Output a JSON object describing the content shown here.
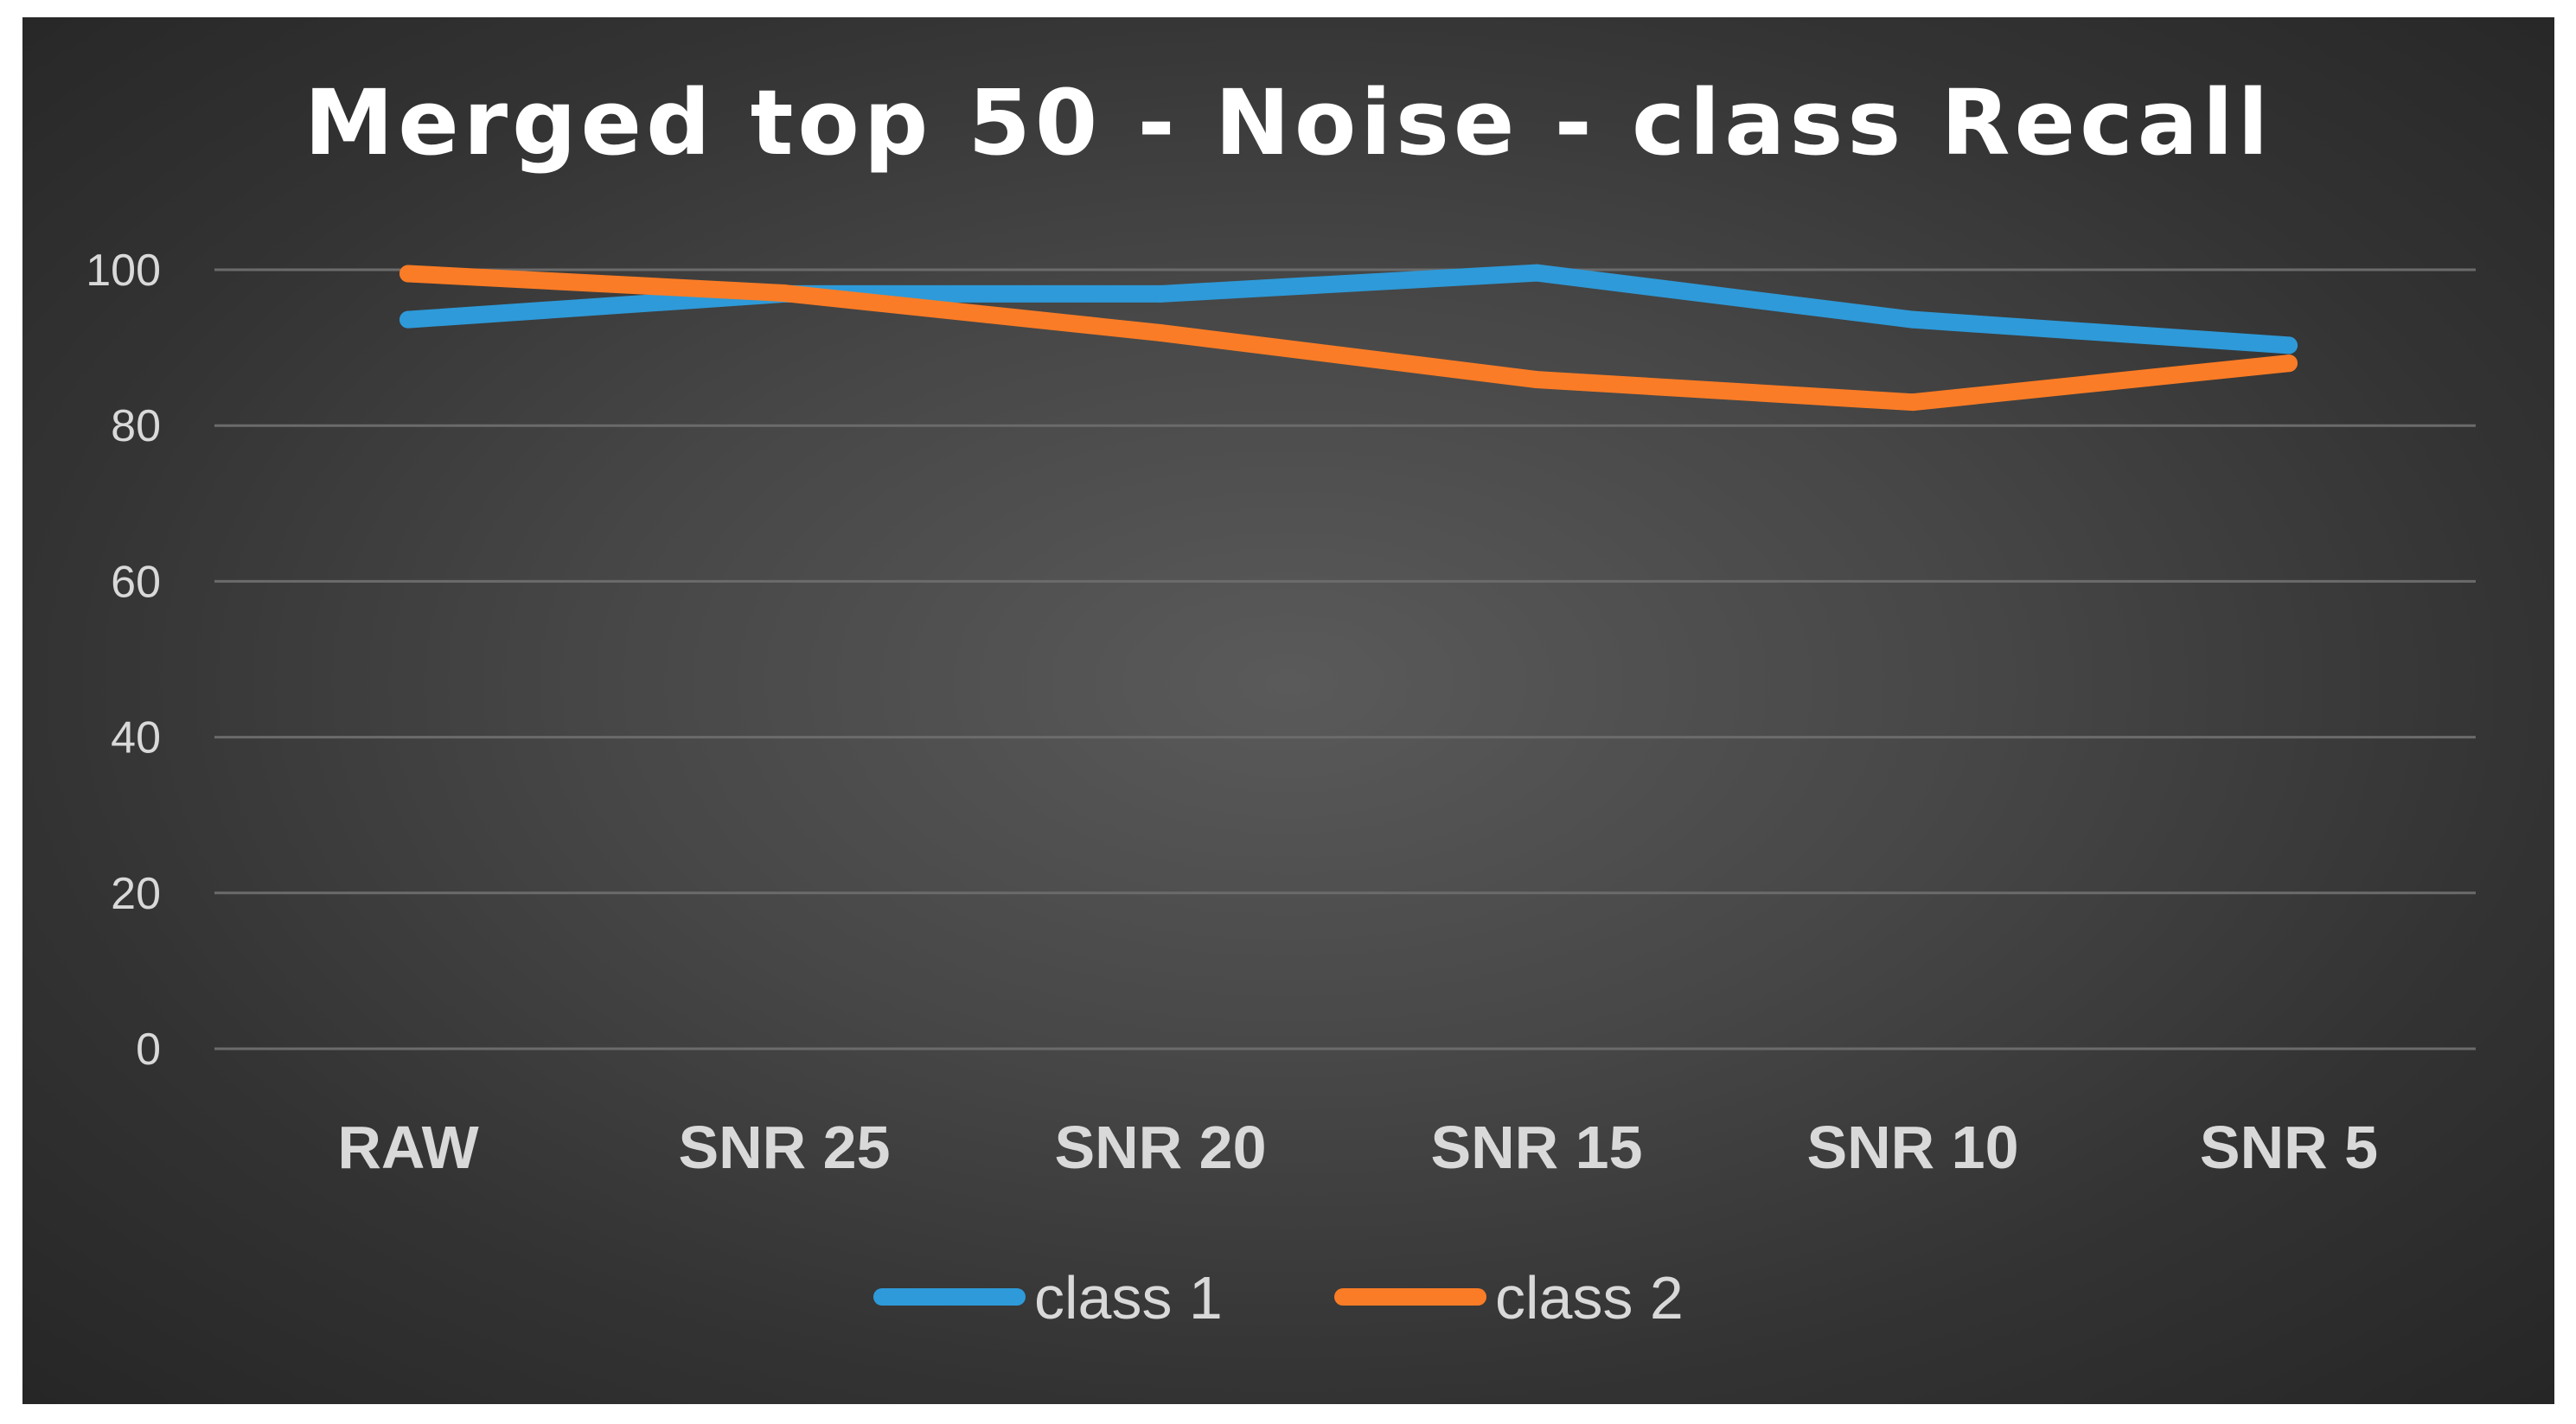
{
  "chart_data": {
    "type": "line",
    "title": "Merged top 50 - Noise - class Recall",
    "xlabel": "",
    "ylabel": "",
    "categories": [
      "RAW",
      "SNR 25",
      "SNR 20",
      "SNR 15",
      "SNR 10",
      "SNR 5"
    ],
    "ylim": [
      0,
      100
    ],
    "yticks": [
      "0",
      "20",
      "40",
      "60",
      "80",
      "100"
    ],
    "yticks_values": [
      0,
      20,
      40,
      60,
      80,
      100
    ],
    "grid": true,
    "legend_position": "bottom",
    "series": [
      {
        "name": "class 1",
        "color": "#2e9ad9",
        "values": [
          93.6,
          96.9,
          96.9,
          99.6,
          93.6,
          90.3
        ]
      },
      {
        "name": "class 2",
        "color": "#fb7c26",
        "values": [
          99.5,
          97.0,
          91.9,
          85.9,
          83.0,
          88.0
        ]
      }
    ]
  }
}
